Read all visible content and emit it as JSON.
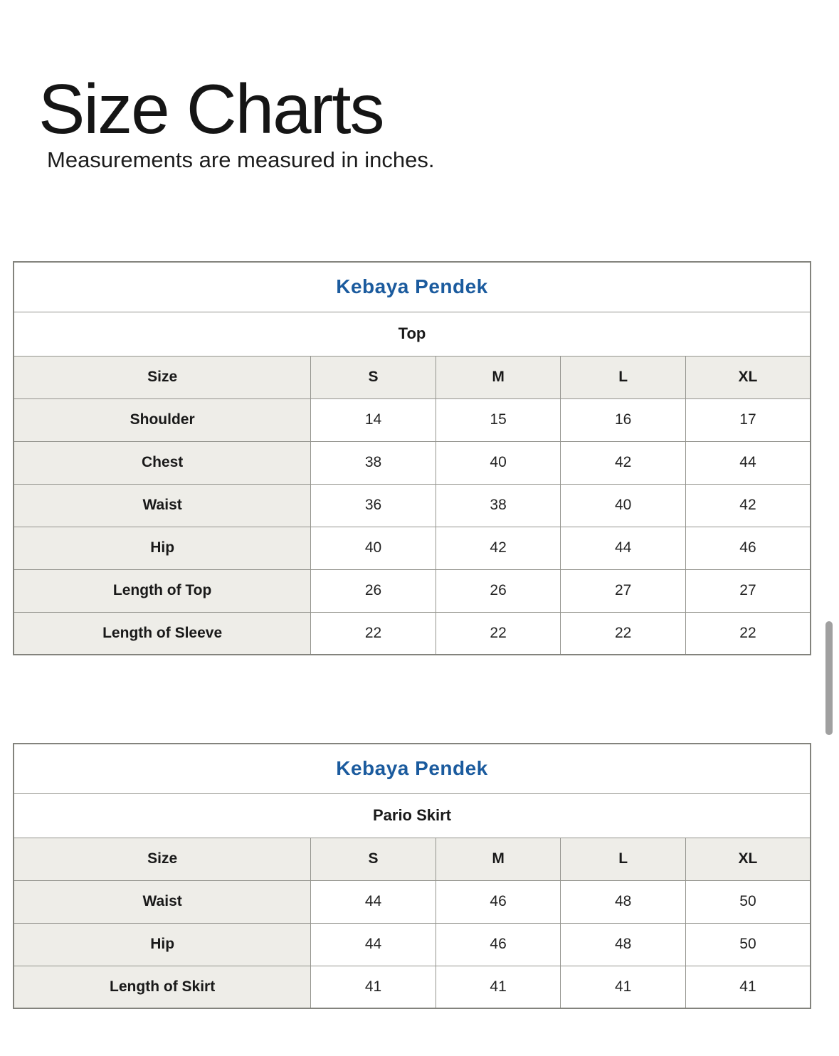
{
  "page": {
    "title": "Size Charts",
    "subtitle": "Measurements are measured in inches."
  },
  "colors": {
    "title_text": "#151515",
    "table_title_blue": "#1b5b9e",
    "header_cell_bg": "#eeede8",
    "table_border": "#94948e",
    "scrollbar_thumb": "#a0a0a0"
  },
  "tables": [
    {
      "title": "Kebaya Pendek",
      "subtitle": "Top",
      "header": [
        "Size",
        "S",
        "M",
        "L",
        "XL"
      ],
      "rows": [
        {
          "label": "Shoulder",
          "values": [
            "14",
            "15",
            "16",
            "17"
          ]
        },
        {
          "label": "Chest",
          "values": [
            "38",
            "40",
            "42",
            "44"
          ]
        },
        {
          "label": "Waist",
          "values": [
            "36",
            "38",
            "40",
            "42"
          ]
        },
        {
          "label": "Hip",
          "values": [
            "40",
            "42",
            "44",
            "46"
          ]
        },
        {
          "label": "Length of Top",
          "values": [
            "26",
            "26",
            "27",
            "27"
          ]
        },
        {
          "label": "Length of Sleeve",
          "values": [
            "22",
            "22",
            "22",
            "22"
          ]
        }
      ]
    },
    {
      "title": "Kebaya Pendek",
      "subtitle": "Pario Skirt",
      "header": [
        "Size",
        "S",
        "M",
        "L",
        "XL"
      ],
      "rows": [
        {
          "label": "Waist",
          "values": [
            "44",
            "46",
            "48",
            "50"
          ]
        },
        {
          "label": "Hip",
          "values": [
            "44",
            "46",
            "48",
            "50"
          ]
        },
        {
          "label": "Length of Skirt",
          "values": [
            "41",
            "41",
            "41",
            "41"
          ]
        }
      ]
    }
  ]
}
